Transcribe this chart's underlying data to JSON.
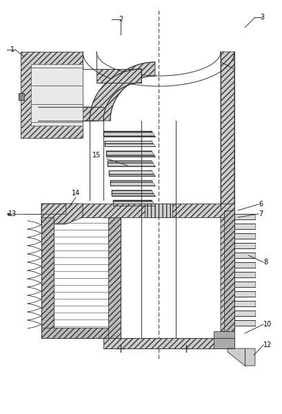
{
  "background_color": "#ffffff",
  "line_color": "#333333",
  "hatch_color": "#333333",
  "lw": 0.7,
  "figsize": [
    4.09,
    6.0
  ],
  "dpi": 100
}
